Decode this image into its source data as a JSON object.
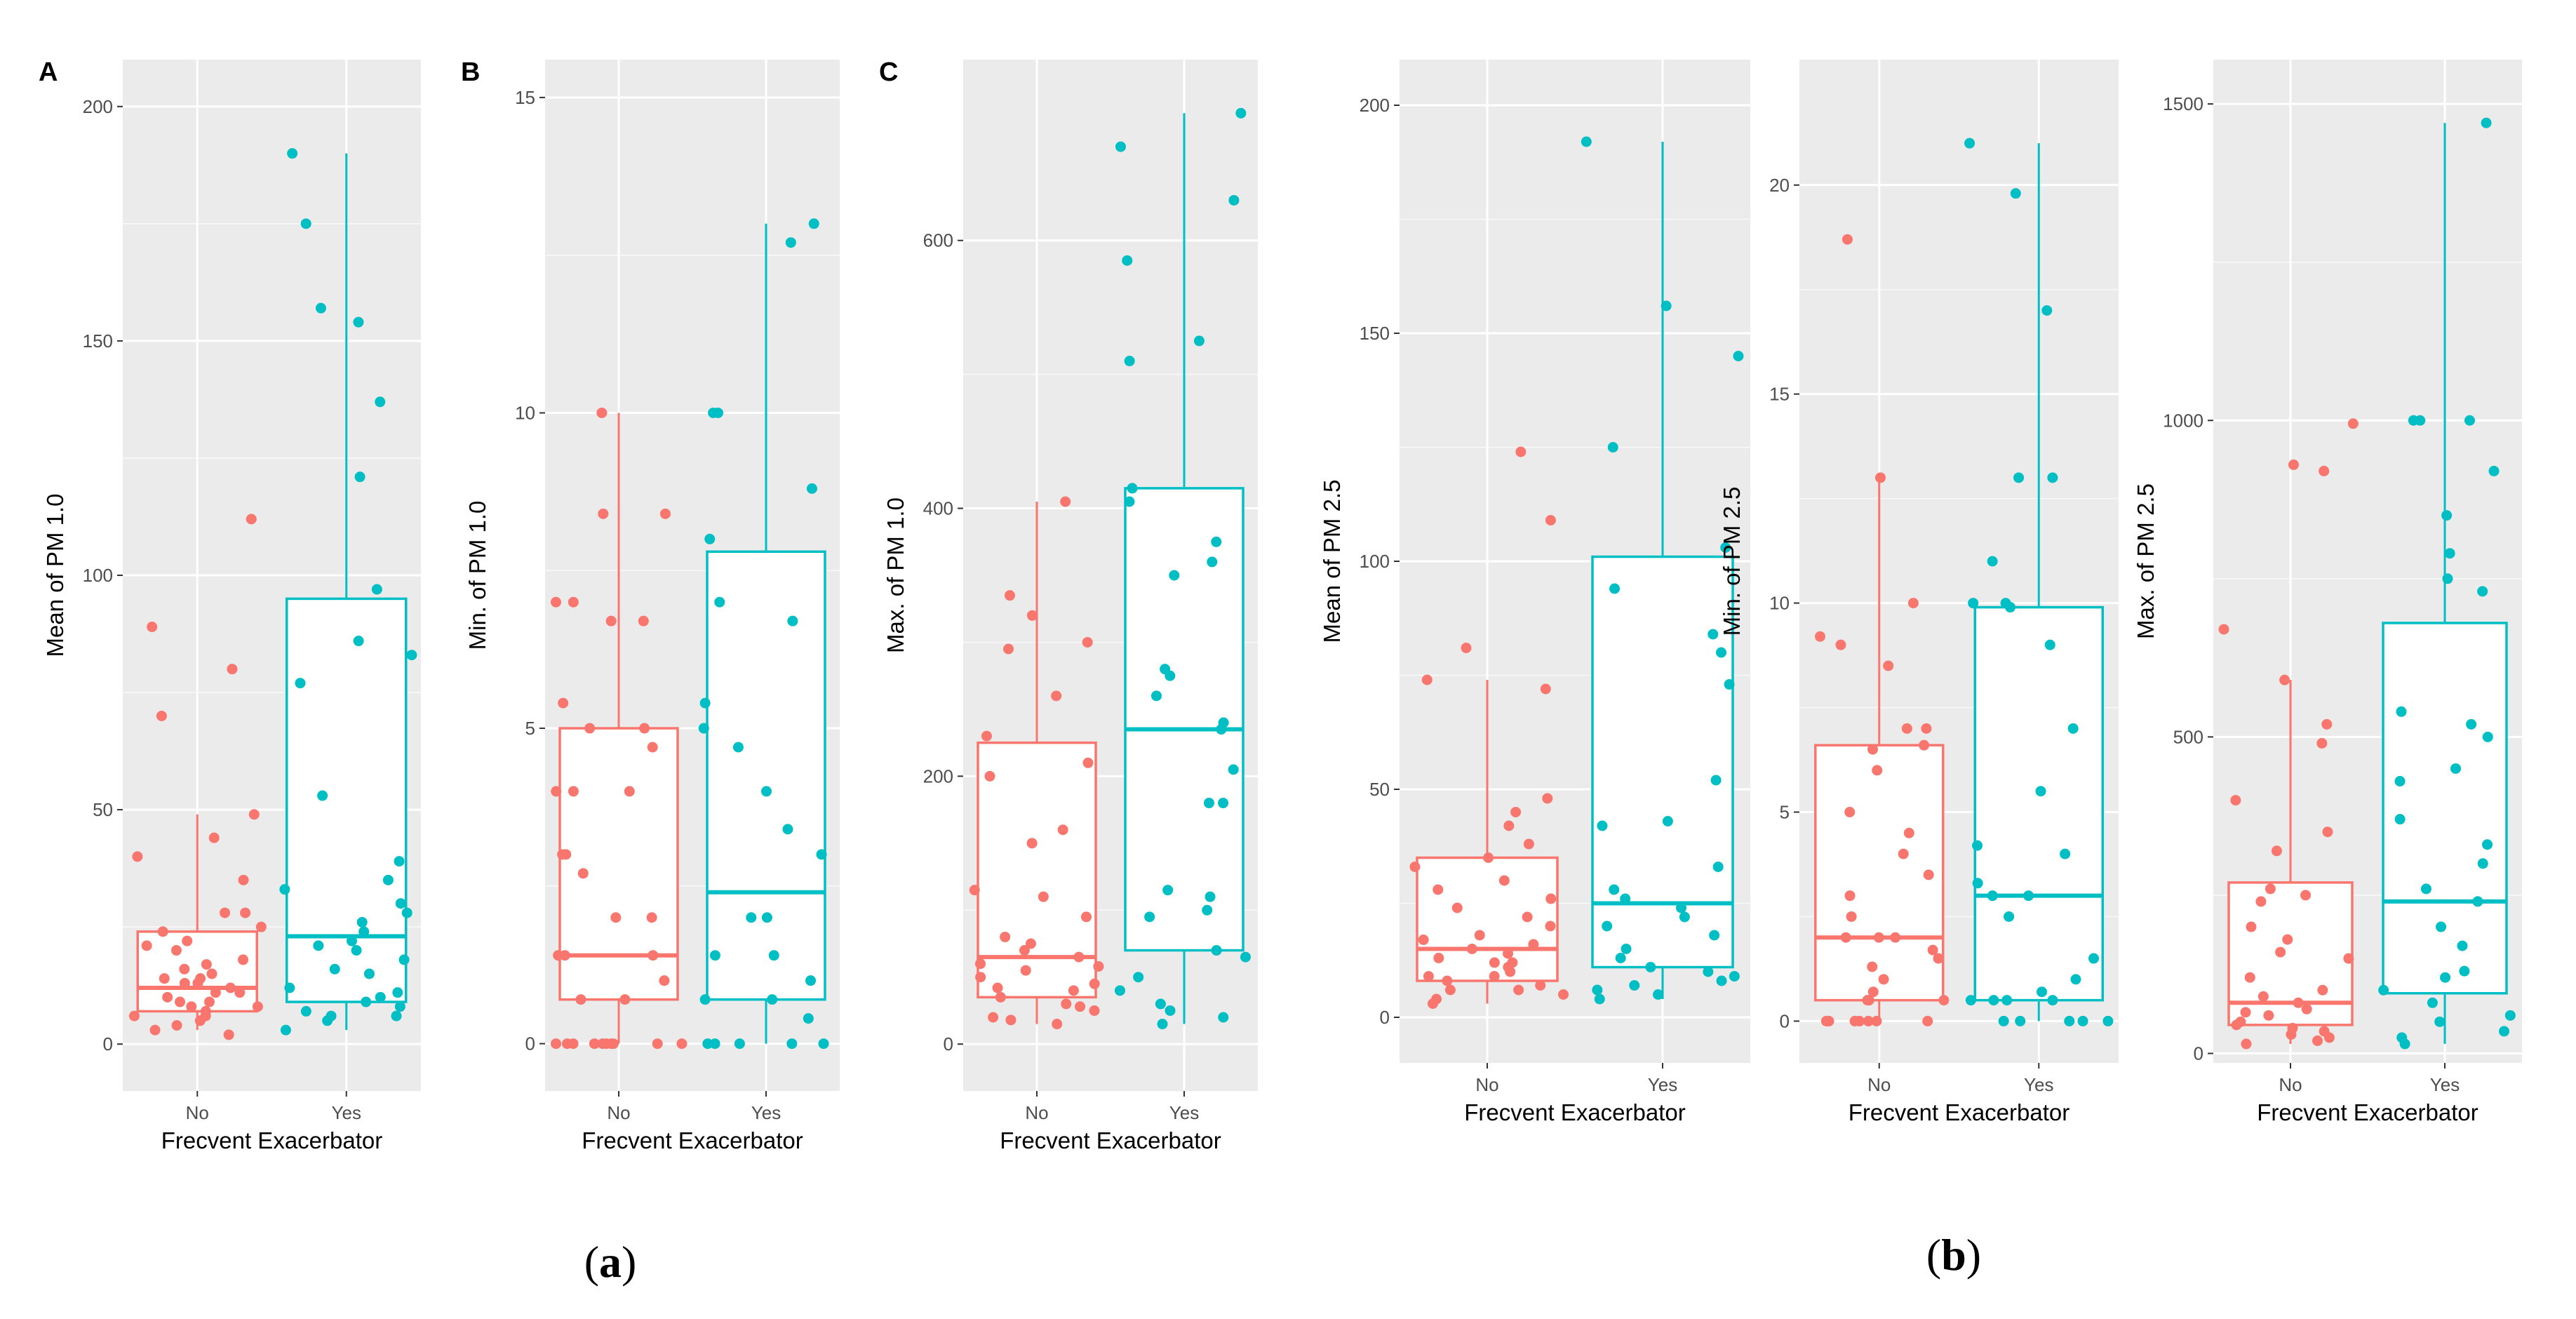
{
  "figure": {
    "caption_a_letter": "a",
    "caption_b_letter": "b",
    "caption_open": "(",
    "caption_close": ")",
    "colors": {
      "no": "#F8766D",
      "yes": "#00BFC4",
      "panel_bg": "#EBEBEB",
      "grid": "#FFFFFF"
    }
  },
  "chart_data": [
    {
      "type": "box",
      "panel_label": "A",
      "ylabel": "Mean of PM 1.0",
      "xlabel": "Frecvent Exacerbator",
      "categories": [
        "No",
        "Yes"
      ],
      "ylim": [
        -10,
        210
      ],
      "yticks": [
        0,
        50,
        100,
        150,
        200
      ],
      "yticks_labels": [
        "0",
        "50",
        "100",
        "150",
        "200"
      ],
      "boxes": [
        {
          "category": "No",
          "min": 3,
          "q1": 7,
          "median": 12,
          "q3": 24,
          "max": 49
        },
        {
          "category": "Yes",
          "min": 3,
          "q1": 9,
          "median": 23,
          "q3": 95,
          "max": 190
        }
      ],
      "points": [
        [
          2,
          7,
          8,
          10,
          11,
          12,
          13,
          14,
          5,
          6,
          9,
          15,
          16,
          18,
          20,
          22,
          24,
          25,
          28,
          28,
          35,
          40,
          44,
          49,
          70,
          80,
          89,
          112,
          3,
          4,
          6,
          9,
          13,
          17,
          21,
          11,
          8,
          14
        ],
        [
          3,
          5,
          6,
          7,
          8,
          9,
          10,
          12,
          15,
          18,
          20,
          22,
          24,
          26,
          28,
          30,
          33,
          35,
          39,
          53,
          77,
          83,
          86,
          97,
          121,
          137,
          154,
          157,
          175,
          190,
          6,
          11,
          16,
          21
        ]
      ]
    },
    {
      "type": "box",
      "panel_label": "B",
      "ylabel": "Min. of PM 1.0",
      "xlabel": "Frecvent Exacerbator",
      "categories": [
        "No",
        "Yes"
      ],
      "ylim": [
        -0.75,
        15.6
      ],
      "yticks": [
        0,
        5,
        10,
        15
      ],
      "yticks_labels": [
        "0",
        "5",
        "10",
        "15"
      ],
      "boxes": [
        {
          "category": "No",
          "min": 0,
          "q1": 0.7,
          "median": 1.4,
          "q3": 5.0,
          "max": 10
        },
        {
          "category": "Yes",
          "min": 0,
          "q1": 0.7,
          "median": 2.4,
          "q3": 7.8,
          "max": 13
        }
      ],
      "points": [
        [
          0,
          0,
          0,
          0,
          0,
          0,
          0,
          0,
          0,
          0,
          0.7,
          0.7,
          1.0,
          1.4,
          1.4,
          1.4,
          2.0,
          2.0,
          2.7,
          3.0,
          3.0,
          4.0,
          4.0,
          4.0,
          4.7,
          5.0,
          5.0,
          5.4,
          6.7,
          6.7,
          7.0,
          7.0,
          8.4,
          8.4,
          10.0
        ],
        [
          0,
          0,
          0,
          0,
          0,
          0.4,
          0.7,
          0.7,
          1.0,
          1.4,
          1.4,
          2.0,
          2.0,
          3.0,
          3.4,
          4.0,
          4.7,
          5.0,
          5.4,
          6.7,
          7.0,
          8.0,
          8.8,
          10.0,
          10.0,
          12.7,
          13.0
        ]
      ]
    },
    {
      "type": "box",
      "panel_label": "C",
      "ylabel": "Max. of PM 1.0",
      "xlabel": "Frecvent Exacerbator",
      "categories": [
        "No",
        "Yes"
      ],
      "ylim": [
        -35,
        735
      ],
      "yticks": [
        0,
        200,
        400,
        600
      ],
      "yticks_labels": [
        "0",
        "200",
        "400",
        "600"
      ],
      "boxes": [
        {
          "category": "No",
          "min": 15,
          "q1": 35,
          "median": 65,
          "q3": 225,
          "max": 405
        },
        {
          "category": "Yes",
          "min": 15,
          "q1": 70,
          "median": 235,
          "q3": 415,
          "max": 695
        }
      ],
      "points": [
        [
          15,
          18,
          20,
          25,
          30,
          35,
          40,
          45,
          50,
          55,
          60,
          65,
          70,
          75,
          80,
          95,
          110,
          115,
          150,
          160,
          200,
          210,
          230,
          260,
          295,
          300,
          320,
          335,
          405,
          28,
          42,
          58
        ],
        [
          15,
          20,
          25,
          30,
          40,
          50,
          65,
          70,
          95,
          100,
          110,
          115,
          180,
          180,
          205,
          235,
          240,
          260,
          275,
          280,
          350,
          360,
          375,
          405,
          415,
          510,
          525,
          585,
          630,
          670,
          695
        ]
      ]
    },
    {
      "type": "box",
      "panel_label": "",
      "ylabel": "Mean of PM 2.5",
      "xlabel": "Frecvent Exacerbator",
      "categories": [
        "No",
        "Yes"
      ],
      "ylim": [
        -10,
        210
      ],
      "yticks": [
        0,
        50,
        100,
        150,
        200
      ],
      "yticks_labels": [
        "0",
        "50",
        "100",
        "150",
        "200"
      ],
      "boxes": [
        {
          "category": "No",
          "min": 3,
          "q1": 8,
          "median": 15,
          "q3": 35,
          "max": 74
        },
        {
          "category": "Yes",
          "min": 4,
          "q1": 11,
          "median": 25,
          "q3": 101,
          "max": 192
        }
      ],
      "points": [
        [
          3,
          4,
          5,
          6,
          7,
          8,
          9,
          10,
          11,
          12,
          13,
          14,
          15,
          16,
          17,
          18,
          20,
          22,
          24,
          26,
          28,
          30,
          33,
          35,
          38,
          42,
          45,
          48,
          72,
          74,
          81,
          109,
          124,
          6,
          9,
          12
        ],
        [
          4,
          5,
          6,
          7,
          8,
          9,
          10,
          11,
          13,
          15,
          18,
          20,
          22,
          24,
          26,
          28,
          33,
          42,
          43,
          52,
          73,
          80,
          84,
          94,
          103,
          125,
          145,
          156,
          192
        ]
      ]
    },
    {
      "type": "box",
      "panel_label": "",
      "ylabel": "Min. of PM 2.5",
      "xlabel": "Frecvent Exacerbator",
      "categories": [
        "No",
        "Yes"
      ],
      "ylim": [
        -1,
        23
      ],
      "yticks": [
        0,
        5,
        10,
        15,
        20
      ],
      "yticks_labels": [
        "0",
        "5",
        "10",
        "15",
        "20"
      ],
      "boxes": [
        {
          "category": "No",
          "min": 0,
          "q1": 0.5,
          "median": 2.0,
          "q3": 6.6,
          "max": 13
        },
        {
          "category": "Yes",
          "min": 0,
          "q1": 0.5,
          "median": 3.0,
          "q3": 9.9,
          "max": 21
        }
      ],
      "points": [
        [
          0,
          0,
          0,
          0,
          0,
          0,
          0,
          0,
          0.5,
          0.5,
          0.5,
          0.7,
          1.0,
          1.3,
          1.5,
          1.7,
          2.0,
          2.0,
          2.0,
          2.5,
          3.0,
          3.5,
          4.0,
          4.5,
          5.0,
          6.0,
          6.5,
          6.6,
          7.0,
          7.0,
          8.5,
          9.0,
          9.2,
          10.0,
          13.0,
          18.7
        ],
        [
          0,
          0,
          0,
          0,
          0,
          0.5,
          0.5,
          0.5,
          0.5,
          0.7,
          1.0,
          1.5,
          2.5,
          3.0,
          3.0,
          3.3,
          4.0,
          4.2,
          5.5,
          7.0,
          9.0,
          9.9,
          10.0,
          10.0,
          11.0,
          13.0,
          13.0,
          17.0,
          19.8,
          21.0
        ]
      ]
    },
    {
      "type": "box",
      "panel_label": "",
      "ylabel": "Max. of PM 2.5",
      "xlabel": "Frecvent Exacerbator",
      "categories": [
        "No",
        "Yes"
      ],
      "ylim": [
        -15,
        1570
      ],
      "yticks": [
        0,
        500,
        1000,
        1500
      ],
      "yticks_labels": [
        "0",
        "500",
        "1000",
        "1500"
      ],
      "boxes": [
        {
          "category": "No",
          "min": 15,
          "q1": 45,
          "median": 80,
          "q3": 270,
          "max": 590
        },
        {
          "category": "Yes",
          "min": 15,
          "q1": 95,
          "median": 240,
          "q3": 680,
          "max": 1470
        }
      ],
      "points": [
        [
          15,
          20,
          25,
          30,
          35,
          40,
          50,
          60,
          70,
          80,
          90,
          100,
          120,
          150,
          160,
          180,
          200,
          240,
          250,
          260,
          320,
          350,
          400,
          490,
          520,
          590,
          670,
          920,
          930,
          995,
          45,
          65
        ],
        [
          15,
          25,
          35,
          50,
          60,
          80,
          100,
          120,
          130,
          170,
          200,
          240,
          260,
          300,
          330,
          370,
          430,
          450,
          500,
          520,
          540,
          730,
          750,
          790,
          850,
          920,
          1000,
          1000,
          1000,
          1470
        ]
      ]
    }
  ]
}
